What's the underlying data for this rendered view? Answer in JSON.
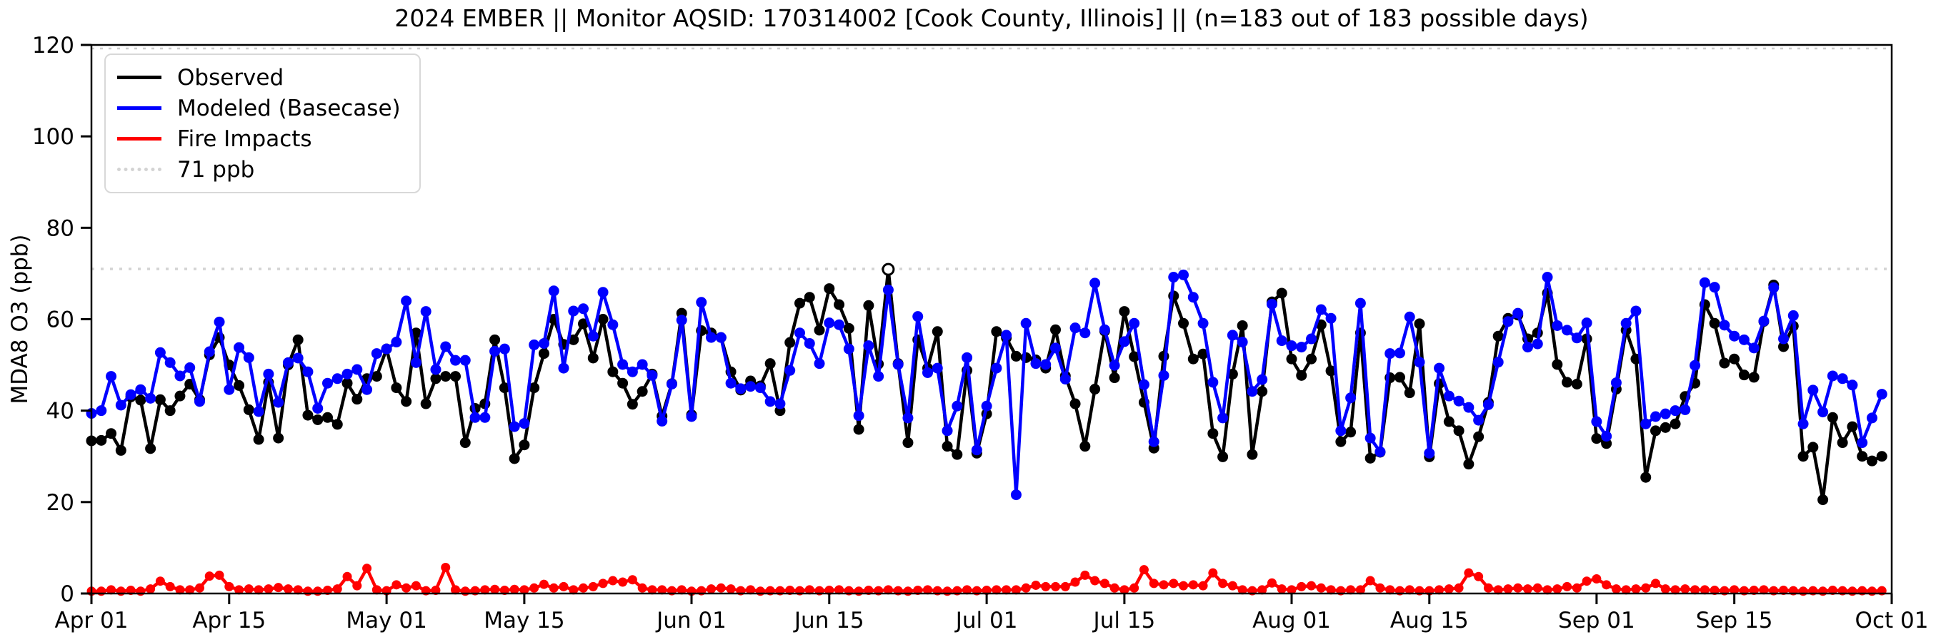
{
  "chart_data": {
    "type": "line",
    "title": "2024 EMBER || Monitor AQSID: 170314002 [Cook County, Illinois] || (n=183 out of 183 possible days)",
    "xlabel": "",
    "ylabel": "MDA8 O3 (ppb)",
    "ylim": [
      0,
      120
    ],
    "y_ticks": [
      0,
      20,
      40,
      60,
      80,
      100,
      120
    ],
    "x_start_date": "Apr 01",
    "x_end_date": "Oct 01",
    "n_days": 183,
    "x_ticks": [
      {
        "day": 0,
        "label": "Apr 01"
      },
      {
        "day": 14,
        "label": "Apr 15"
      },
      {
        "day": 30,
        "label": "May 01"
      },
      {
        "day": 44,
        "label": "May 15"
      },
      {
        "day": 61,
        "label": "Jun 01"
      },
      {
        "day": 75,
        "label": "Jun 15"
      },
      {
        "day": 91,
        "label": "Jul 01"
      },
      {
        "day": 105,
        "label": "Jul 15"
      },
      {
        "day": 122,
        "label": "Aug 01"
      },
      {
        "day": 136,
        "label": "Aug 15"
      },
      {
        "day": 153,
        "label": "Sep 01"
      },
      {
        "day": 167,
        "label": "Sep 15"
      },
      {
        "day": 183,
        "label": "Oct 01"
      }
    ],
    "refline": {
      "label": "71 ppb",
      "value": 71,
      "color": "#d3d3d3",
      "style": "dotted"
    },
    "grid": false,
    "legend_position": "upper-left",
    "open_marker": {
      "series": "Observed",
      "index": 81,
      "note": "day touching 71 ppb line drawn as open circle"
    },
    "series": [
      {
        "name": "Observed",
        "color": "#000000",
        "values": [
          33.4,
          33.5,
          35,
          31.3,
          43,
          42.3,
          31.7,
          42.4,
          40,
          43.2,
          45.8,
          42.4,
          52.2,
          56,
          50,
          45.5,
          40.2,
          33.7,
          46.2,
          34,
          50,
          55.5,
          39,
          38,
          38.5,
          37,
          46,
          42.5,
          47,
          47.5,
          53.5,
          45,
          42,
          57,
          41.5,
          47,
          47.5,
          47.5,
          33,
          40.5,
          41.5,
          55.5,
          45,
          29.5,
          32.5,
          45,
          52.5,
          60,
          54.5,
          55.5,
          59,
          51.5,
          60,
          48.5,
          46,
          41.4,
          44.2,
          48,
          38.8,
          45.9,
          61.3,
          39.1,
          57.5,
          57,
          56,
          48.5,
          44.5,
          46.5,
          45.4,
          50.3,
          40,
          54.9,
          63.5,
          64.8,
          57.6,
          66.7,
          63.2,
          58,
          35.9,
          63,
          50.2,
          70.9,
          50.3,
          33,
          55.5,
          49.3,
          57.3,
          32.2,
          30.4,
          48.8,
          30.7,
          39.3,
          57.3,
          55.9,
          51.9,
          51.6,
          51.1,
          49.3,
          57.7,
          47.6,
          41.5,
          32.2,
          44.7,
          57.4,
          47.2,
          61.7,
          51.8,
          41.8,
          31.8,
          51.9,
          65.1,
          59.1,
          51.3,
          52.4,
          35,
          29.9,
          48,
          58.6,
          30.4,
          44.2,
          63.8,
          65.7,
          51.3,
          47.7,
          51.3,
          58.8,
          48.7,
          33.2,
          35.3,
          57,
          29.6,
          30.9,
          47.2,
          47.3,
          43.9,
          59,
          29.9,
          45.9,
          37.6,
          35.6,
          28.3,
          34.3,
          41.8,
          56.3,
          60.2,
          60.9,
          55.7,
          57,
          65.7,
          50.1,
          46.2,
          45.8,
          55.7,
          33.9,
          32.8,
          44.7,
          57.6,
          51.3,
          25.4,
          35.6,
          36.3,
          37.1,
          43.1,
          46,
          63.2,
          59.1,
          50.4,
          51.3,
          47.8,
          47.3,
          59.5,
          67.5,
          54,
          58.5,
          30,
          32,
          20.5,
          38.5,
          33,
          36.5,
          30,
          29,
          30
        ]
      },
      {
        "name": "Modeled (Basecase)",
        "color": "#0000ff",
        "values": [
          39.4,
          40,
          47.5,
          41.2,
          43.5,
          44.6,
          42.7,
          52.7,
          50.5,
          47.6,
          49.4,
          42,
          52.9,
          59.4,
          44.6,
          53.8,
          51.6,
          39.8,
          48,
          41.8,
          50.5,
          51.5,
          48.5,
          40.5,
          46,
          47,
          48,
          49,
          44.6,
          52.5,
          53.5,
          55,
          64,
          50.5,
          61.7,
          49,
          54,
          51,
          51,
          38.5,
          38.5,
          53,
          53.5,
          36.5,
          37.2,
          54.4,
          54.7,
          66.2,
          49.3,
          61.8,
          62.3,
          56.3,
          65.9,
          58.8,
          50.1,
          48.5,
          50.1,
          47.7,
          37.7,
          45.8,
          59.8,
          38.7,
          63.7,
          56,
          56,
          46,
          44.8,
          45.3,
          45,
          42,
          41.5,
          48.8,
          57,
          54.7,
          50.3,
          59.2,
          58.8,
          53.5,
          38.9,
          54.2,
          47.5,
          66.4,
          50.1,
          38.4,
          60.6,
          48.3,
          49.3,
          35.6,
          41,
          51.6,
          31.4,
          41,
          49.3,
          56.5,
          21.6,
          59.1,
          50.3,
          50.1,
          53.7,
          46.9,
          58.1,
          57,
          67.9,
          57.7,
          49.9,
          55.1,
          59.1,
          45.7,
          33.2,
          47.7,
          69.2,
          69.7,
          64.8,
          59.1,
          46.2,
          38.4,
          56.5,
          55,
          44.2,
          46.8,
          63.3,
          55.3,
          54.2,
          53.9,
          55.7,
          62.1,
          60.2,
          35.6,
          42.8,
          63.5,
          34,
          31,
          52.5,
          52.6,
          60.5,
          50.6,
          30.7,
          49.3,
          43.2,
          42.1,
          40.7,
          37.9,
          41.3,
          50.6,
          59.5,
          61.3,
          53.9,
          54.6,
          69.2,
          58.6,
          57.6,
          55.9,
          59.2,
          37.6,
          34.4,
          46.1,
          59.1,
          61.8,
          37.1,
          38.7,
          39.3,
          40,
          40.2,
          49.9,
          68,
          67,
          58.7,
          56.3,
          55.5,
          53.7,
          59.6,
          66.9,
          55.7,
          60.8,
          37.1,
          44.5,
          39.7,
          47.6,
          47,
          45.6,
          33,
          38.4,
          43.6
        ]
      },
      {
        "name": "Fire Impacts",
        "color": "#ff0000",
        "values": [
          0.5,
          0.5,
          0.8,
          0.5,
          0.7,
          0.5,
          1,
          2.7,
          1.5,
          0.8,
          0.8,
          1.2,
          3.8,
          4,
          1.5,
          0.8,
          1,
          0.8,
          1,
          1.3,
          1,
          0.8,
          0.5,
          0.5,
          0.7,
          1,
          3.7,
          1.7,
          5.5,
          0.8,
          0.6,
          1.9,
          1.2,
          1.7,
          0.6,
          0.7,
          5.7,
          0.8,
          0.5,
          0.6,
          0.8,
          0.9,
          0.7,
          0.9,
          0.8,
          1.2,
          2,
          1.2,
          1.5,
          0.8,
          1.2,
          1.5,
          2.2,
          2.8,
          2.5,
          3,
          1.2,
          0.8,
          0.8,
          0.6,
          0.8,
          0.5,
          0.6,
          1,
          1.2,
          1,
          0.6,
          0.8,
          0.5,
          0.6,
          0.6,
          0.7,
          0.6,
          0.8,
          0.6,
          0.7,
          0.8,
          0.6,
          0.5,
          0.7,
          0.6,
          0.8,
          0.6,
          0.5,
          0.7,
          0.8,
          0.6,
          0.5,
          0.6,
          0.8,
          0.6,
          0.7,
          0.8,
          0.8,
          0.8,
          1.2,
          1.8,
          1.5,
          1.5,
          1.5,
          2.5,
          4,
          2.8,
          2.2,
          1.2,
          0.8,
          1.2,
          5.2,
          2.2,
          1.9,
          2.2,
          1.7,
          1.9,
          1.7,
          4.5,
          2.2,
          1.7,
          0.8,
          0.6,
          0.8,
          2.3,
          1,
          0.8,
          1.5,
          1.7,
          1.2,
          0.8,
          0.6,
          0.8,
          0.8,
          2.8,
          1.2,
          0.8,
          0.6,
          0.8,
          0.6,
          0.6,
          0.8,
          1,
          1.2,
          4.5,
          3.7,
          1.2,
          0.8,
          1,
          1.2,
          1,
          1.2,
          0.8,
          1,
          1.5,
          1.2,
          2.7,
          3.2,
          1.9,
          1,
          0.8,
          1,
          1.2,
          2.2,
          1,
          0.8,
          1,
          0.8,
          0.8,
          0.7,
          0.6,
          0.8,
          0.6,
          0.7,
          0.8,
          0.6,
          0.7,
          0.6,
          0.5,
          0.6,
          0.5,
          0.7,
          0.6,
          0.5,
          0.6,
          0.5,
          0.6
        ]
      }
    ]
  }
}
